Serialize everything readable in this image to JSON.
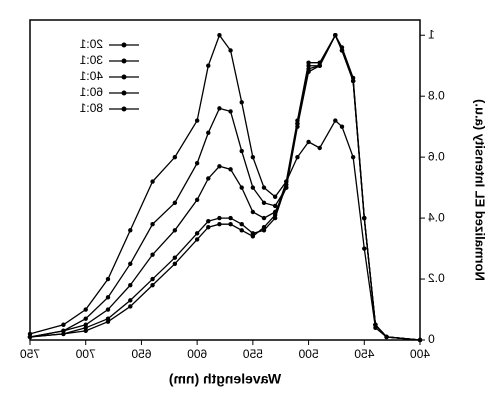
{
  "chart_data": {
    "type": "line",
    "x_label": "Wavelength (nm)",
    "y_label": "Normalized EL Intensity (a.u.)",
    "mirrored": true,
    "x": [
      400,
      430,
      440,
      450,
      460,
      470,
      476,
      490,
      500,
      510,
      520,
      530,
      540,
      550,
      560,
      570,
      580,
      590,
      600,
      620,
      640,
      660,
      680,
      700,
      720,
      750
    ],
    "series": [
      {
        "name": "20:1",
        "color": "#000000",
        "values": [
          0,
          0.01,
          0.05,
          0.4,
          0.86,
          0.96,
          1.0,
          0.91,
          0.91,
          0.72,
          0.52,
          0.41,
          0.37,
          0.34,
          0.36,
          0.38,
          0.38,
          0.37,
          0.33,
          0.25,
          0.18,
          0.11,
          0.06,
          0.03,
          0.02,
          0.01
        ]
      },
      {
        "name": "30:1",
        "color": "#000000",
        "values": [
          0,
          0.01,
          0.05,
          0.4,
          0.85,
          0.95,
          1.0,
          0.9,
          0.89,
          0.71,
          0.51,
          0.4,
          0.36,
          0.35,
          0.38,
          0.4,
          0.4,
          0.39,
          0.35,
          0.27,
          0.2,
          0.13,
          0.07,
          0.04,
          0.02,
          0.01
        ]
      },
      {
        "name": "40:1",
        "color": "#000000",
        "values": [
          0,
          0.01,
          0.05,
          0.4,
          0.85,
          0.95,
          1.0,
          0.9,
          0.9,
          0.71,
          0.5,
          0.42,
          0.4,
          0.42,
          0.5,
          0.56,
          0.57,
          0.53,
          0.46,
          0.36,
          0.28,
          0.18,
          0.1,
          0.05,
          0.03,
          0.01
        ]
      },
      {
        "name": "60:1",
        "color": "#000000",
        "values": [
          0,
          0.01,
          0.05,
          0.4,
          0.85,
          0.95,
          1.0,
          0.9,
          0.88,
          0.7,
          0.5,
          0.44,
          0.45,
          0.5,
          0.62,
          0.75,
          0.76,
          0.68,
          0.58,
          0.45,
          0.38,
          0.25,
          0.14,
          0.07,
          0.03,
          0.01
        ]
      },
      {
        "name": "80:1",
        "color": "#000000",
        "values": [
          0,
          0.01,
          0.04,
          0.3,
          0.6,
          0.7,
          0.72,
          0.63,
          0.65,
          0.6,
          0.52,
          0.47,
          0.5,
          0.6,
          0.78,
          0.95,
          1.0,
          0.9,
          0.72,
          0.6,
          0.52,
          0.36,
          0.2,
          0.1,
          0.05,
          0.02
        ]
      }
    ],
    "xlim": [
      400,
      750
    ],
    "xticks": [
      400,
      450,
      500,
      550,
      600,
      650,
      700,
      750
    ],
    "ylim": [
      0,
      1.05
    ],
    "yticks": [
      0,
      0.2,
      0.4,
      0.6,
      0.8,
      1
    ]
  }
}
